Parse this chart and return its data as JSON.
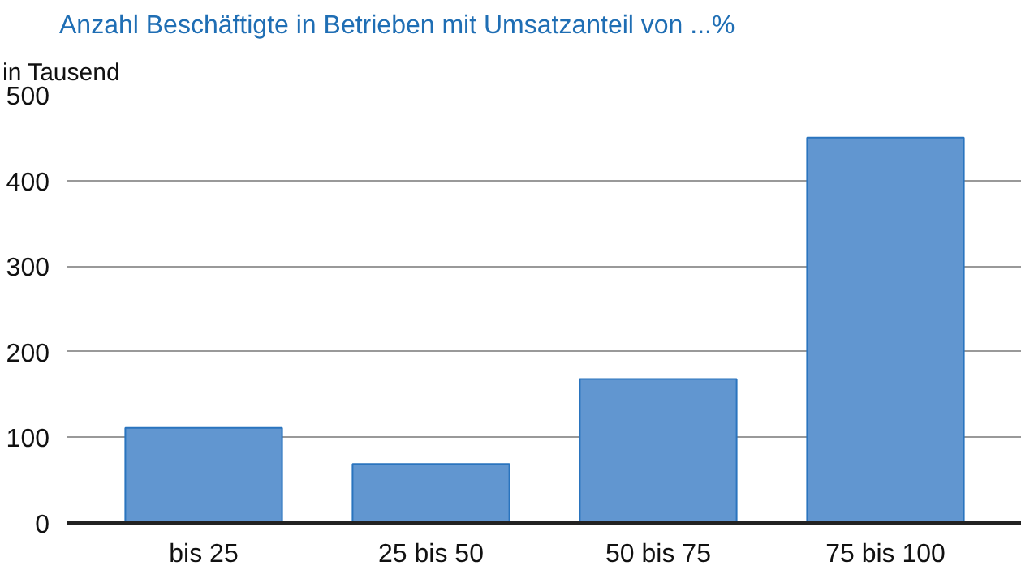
{
  "chart_data": {
    "type": "bar",
    "title": "Anzahl Beschäftigte in Betrieben mit Umsatzanteil von ...%",
    "ylabel": "in Tausend",
    "categories": [
      "bis 25",
      "25 bis 50",
      "50 bis 75",
      "75 bis 100"
    ],
    "values": [
      111,
      69,
      168,
      450
    ],
    "color": "#6196d0",
    "ylim": [
      0,
      500
    ],
    "yticks": [
      0,
      100,
      200,
      300,
      400,
      500
    ],
    "grid": "y"
  }
}
